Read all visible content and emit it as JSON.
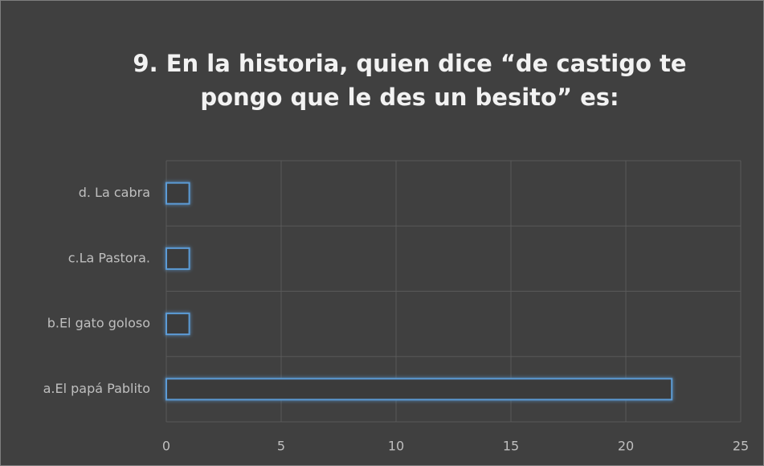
{
  "chart_data": {
    "type": "barh",
    "title": "9. En la historia, quien dice “de castigo te pongo que le des un besito” es:",
    "categories": [
      "a.El papá Pablito",
      "b.El gato goloso",
      "c.La Pastora.",
      "d. La cabra"
    ],
    "values": [
      22,
      1,
      1,
      1
    ],
    "color": "#5b9bd5",
    "xlim": [
      0,
      25
    ],
    "xticks": [
      0,
      5,
      10,
      15,
      20,
      25
    ],
    "grid": true
  }
}
